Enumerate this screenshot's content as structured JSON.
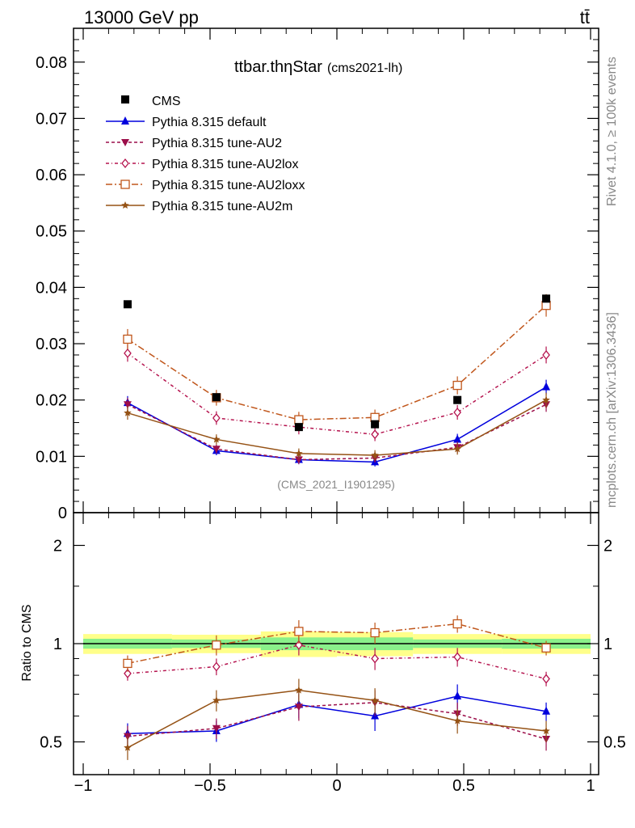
{
  "header": {
    "energy_label": "13000 GeV pp",
    "process_label": "tt̄"
  },
  "side_labels": {
    "rivet": "Rivet 4.1.0, ≥ 100k events",
    "mcplots": "mcplots.cern.ch [arXiv:1306.3436]"
  },
  "chart_data": {
    "type": "scatter",
    "title_main": "ttbar.thηStar",
    "title_sub": "(cms2021-lh)",
    "analysis_label": "(CMS_2021_I1901295)",
    "main_yticks": [
      "0",
      "0.01",
      "0.02",
      "0.03",
      "0.04",
      "0.05",
      "0.06",
      "0.07",
      "0.08"
    ],
    "main_ylim": [
      0,
      0.086
    ],
    "xlim": [
      -1,
      1
    ],
    "xticks": [
      "−1",
      "−0.5",
      "0",
      "0.5",
      "1"
    ],
    "ratio_ylabel": "Ratio to CMS",
    "ratio_yticks_left": [
      "0.5",
      "1",
      "2"
    ],
    "ratio_yticks_right": [
      "0.5",
      "1",
      "2"
    ],
    "x": [
      -0.825,
      -0.475,
      -0.15,
      0.15,
      0.475,
      0.825
    ],
    "data": {
      "name": "CMS",
      "values": [
        0.037,
        0.0205,
        0.0152,
        0.0157,
        0.02,
        0.038
      ],
      "band_inner": [
        0.035,
        0.03,
        0.045,
        0.045,
        0.03,
        0.035
      ],
      "band_outer": [
        0.07,
        0.065,
        0.09,
        0.085,
        0.07,
        0.07
      ]
    },
    "series": [
      {
        "name": "Pythia 8.315 default",
        "color": "#0000dd",
        "dash": "",
        "marker": "triangle-up",
        "values": [
          0.0195,
          0.011,
          0.0094,
          0.009,
          0.013,
          0.0223
        ],
        "errors": [
          0.0012,
          0.0008,
          0.0008,
          0.0008,
          0.001,
          0.0013
        ],
        "ratio": [
          0.53,
          0.54,
          0.65,
          0.6,
          0.69,
          0.62
        ],
        "ratio_err": [
          0.04,
          0.04,
          0.06,
          0.06,
          0.06,
          0.04
        ]
      },
      {
        "name": "Pythia 8.315 tune-AU2",
        "color": "#9c0e4a",
        "dash": "4,3",
        "marker": "triangle-down",
        "values": [
          0.0192,
          0.0113,
          0.0094,
          0.0097,
          0.0116,
          0.0192
        ],
        "errors": [
          0.0012,
          0.0008,
          0.0008,
          0.0008,
          0.001,
          0.0013
        ],
        "ratio": [
          0.52,
          0.55,
          0.64,
          0.66,
          0.61,
          0.51
        ],
        "ratio_err": [
          0.04,
          0.04,
          0.06,
          0.06,
          0.05,
          0.04
        ]
      },
      {
        "name": "Pythia 8.315 tune-AU2lox",
        "color": "#b5134e",
        "dash": "4,3,1,3",
        "marker": "diamond-open",
        "values": [
          0.0283,
          0.0168,
          0.0152,
          0.0139,
          0.0178,
          0.028
        ],
        "errors": [
          0.0015,
          0.0012,
          0.0013,
          0.0012,
          0.0013,
          0.0015
        ],
        "ratio": [
          0.81,
          0.85,
          0.99,
          0.9,
          0.91,
          0.78
        ],
        "ratio_err": [
          0.04,
          0.05,
          0.07,
          0.07,
          0.06,
          0.04
        ]
      },
      {
        "name": "Pythia 8.315 tune-AU2loxx",
        "color": "#c0561b",
        "dash": "8,3,2,3",
        "marker": "square-open",
        "values": [
          0.0308,
          0.0204,
          0.0165,
          0.0169,
          0.0226,
          0.0368
        ],
        "errors": [
          0.0018,
          0.0014,
          0.0014,
          0.0014,
          0.0016,
          0.002
        ],
        "ratio": [
          0.87,
          0.99,
          1.09,
          1.08,
          1.15,
          0.97
        ],
        "ratio_err": [
          0.05,
          0.07,
          0.09,
          0.08,
          0.07,
          0.05
        ]
      },
      {
        "name": "Pythia 8.315 tune-AU2m",
        "color": "#955215",
        "dash": "",
        "marker": "star",
        "values": [
          0.0177,
          0.013,
          0.0105,
          0.0102,
          0.0113,
          0.02
        ],
        "errors": [
          0.0012,
          0.0009,
          0.0009,
          0.0009,
          0.001,
          0.0013
        ],
        "ratio": [
          0.48,
          0.67,
          0.72,
          0.67,
          0.58,
          0.54
        ],
        "ratio_err": [
          0.04,
          0.05,
          0.06,
          0.06,
          0.05,
          0.04
        ]
      }
    ]
  }
}
